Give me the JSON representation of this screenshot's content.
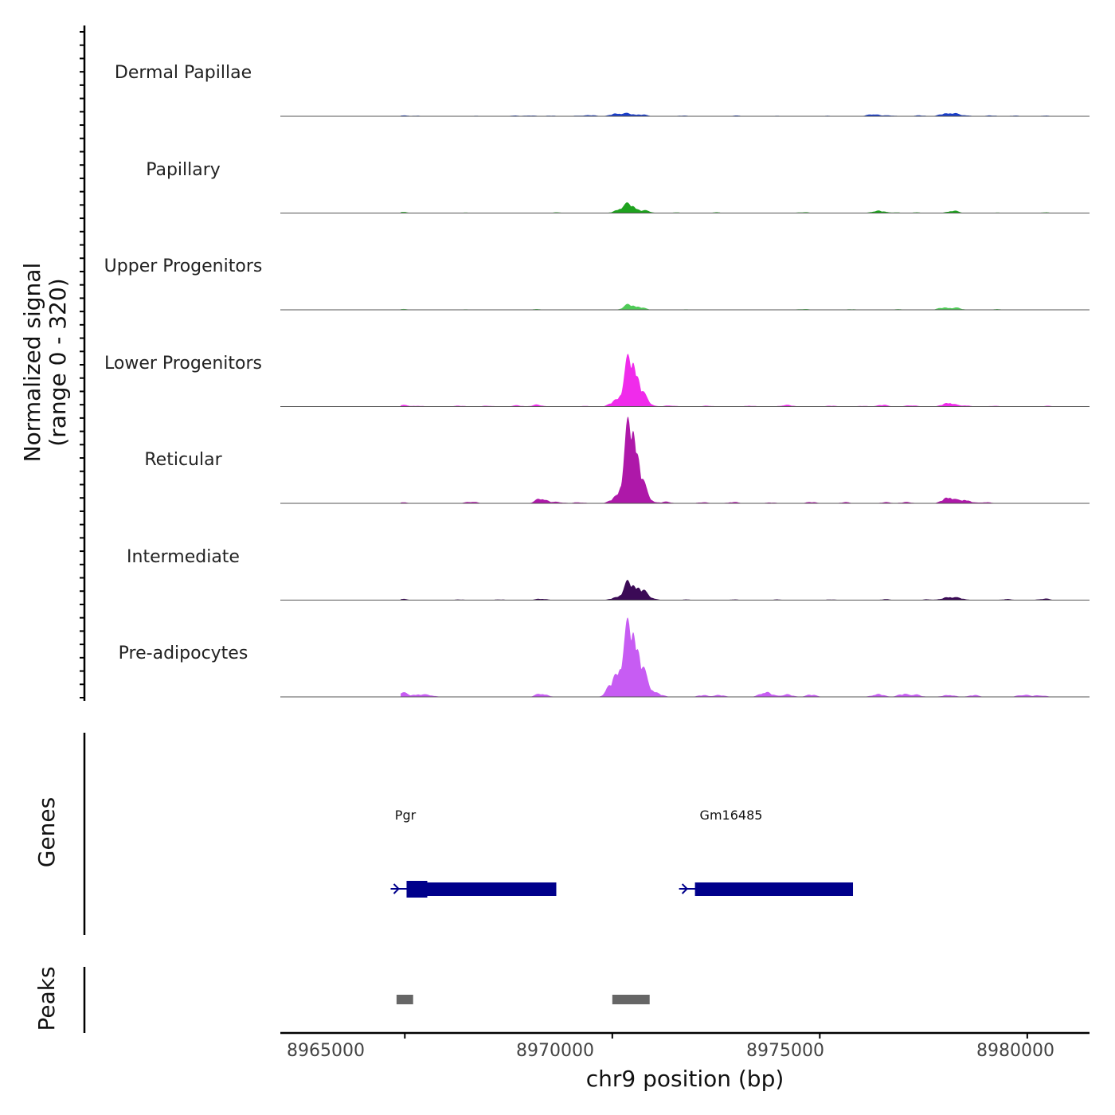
{
  "chart_data": {
    "type": "area",
    "title": "",
    "region": "chr9",
    "xlabel": "chr9 position (bp)",
    "ylabel_line1": "Normalized signal",
    "ylabel_line2": "(range 0 - 320)",
    "ylim": [
      0,
      320
    ],
    "xlim": [
      8962000,
      8981500
    ],
    "xticks": [
      8965000,
      8970000,
      8975000,
      8980000
    ],
    "xtick_labels": [
      "8965000",
      "8970000",
      "8975000",
      "8980000"
    ],
    "tracks": [
      {
        "name": "Dermal Papillae",
        "color": "#1A3EC8",
        "peaks": [
          [
            8964900,
            4
          ],
          [
            8965300,
            3
          ],
          [
            8966700,
            2
          ],
          [
            8967600,
            3
          ],
          [
            8968000,
            4
          ],
          [
            8968500,
            3
          ],
          [
            8969200,
            3
          ],
          [
            8969500,
            5
          ],
          [
            8970100,
            14
          ],
          [
            8970400,
            11
          ],
          [
            8970700,
            8
          ],
          [
            8971700,
            3
          ],
          [
            8972300,
            2
          ],
          [
            8973000,
            3
          ],
          [
            8974000,
            2
          ],
          [
            8975200,
            2
          ],
          [
            8976300,
            11
          ],
          [
            8976700,
            4
          ],
          [
            8977400,
            4
          ],
          [
            8978000,
            10
          ],
          [
            8978200,
            12
          ],
          [
            8978500,
            5
          ],
          [
            8979100,
            4
          ],
          [
            8979700,
            3
          ],
          [
            8980400,
            3
          ]
        ]
      },
      {
        "name": "Papillary",
        "color": "#1FA21F",
        "peaks": [
          [
            8964900,
            5
          ],
          [
            8966500,
            2
          ],
          [
            8967800,
            2
          ],
          [
            8968700,
            3
          ],
          [
            8970200,
            20
          ],
          [
            8970450,
            38
          ],
          [
            8970800,
            10
          ],
          [
            8971500,
            3
          ],
          [
            8972500,
            3
          ],
          [
            8973700,
            2
          ],
          [
            8974600,
            4
          ],
          [
            8976400,
            12
          ],
          [
            8976800,
            3
          ],
          [
            8977300,
            3
          ],
          [
            8978200,
            11
          ],
          [
            8979300,
            2
          ],
          [
            8980400,
            3
          ]
        ]
      },
      {
        "name": "Upper Progenitors",
        "color": "#4FCB57",
        "peaks": [
          [
            8964900,
            4
          ],
          [
            8966500,
            2
          ],
          [
            8968200,
            3
          ],
          [
            8969300,
            2
          ],
          [
            8970400,
            22
          ],
          [
            8970650,
            12
          ],
          [
            8971800,
            2
          ],
          [
            8973300,
            2
          ],
          [
            8974600,
            4
          ],
          [
            8975800,
            3
          ],
          [
            8976900,
            3
          ],
          [
            8978000,
            11
          ],
          [
            8978300,
            8
          ],
          [
            8979300,
            3
          ]
        ]
      },
      {
        "name": "Lower Progenitors",
        "color": "#F02BEB",
        "peaks": [
          [
            8964900,
            8
          ],
          [
            8965300,
            4
          ],
          [
            8966300,
            4
          ],
          [
            8967000,
            4
          ],
          [
            8967700,
            5
          ],
          [
            8968200,
            8
          ],
          [
            8969300,
            3
          ],
          [
            8970100,
            30
          ],
          [
            8970400,
            150
          ],
          [
            8970550,
            130
          ],
          [
            8970800,
            25
          ],
          [
            8971400,
            5
          ],
          [
            8972300,
            4
          ],
          [
            8973300,
            4
          ],
          [
            8974200,
            8
          ],
          [
            8975300,
            4
          ],
          [
            8976000,
            3
          ],
          [
            8976500,
            8
          ],
          [
            8977200,
            6
          ],
          [
            8978100,
            20
          ],
          [
            8978500,
            6
          ],
          [
            8979200,
            3
          ],
          [
            8980500,
            3
          ]
        ]
      },
      {
        "name": "Reticular",
        "color": "#AE18A9",
        "peaks": [
          [
            8964900,
            5
          ],
          [
            8966600,
            8
          ],
          [
            8968300,
            24
          ],
          [
            8968700,
            6
          ],
          [
            8969200,
            5
          ],
          [
            8970100,
            28
          ],
          [
            8970400,
            248
          ],
          [
            8970550,
            215
          ],
          [
            8970800,
            35
          ],
          [
            8971300,
            7
          ],
          [
            8972200,
            5
          ],
          [
            8972900,
            6
          ],
          [
            8973800,
            4
          ],
          [
            8974800,
            6
          ],
          [
            8975600,
            5
          ],
          [
            8976600,
            5
          ],
          [
            8977100,
            6
          ],
          [
            8978100,
            32
          ],
          [
            8978500,
            18
          ],
          [
            8979000,
            6
          ]
        ]
      },
      {
        "name": "Intermediate",
        "color": "#3B0A56",
        "peaks": [
          [
            8964900,
            6
          ],
          [
            8966300,
            3
          ],
          [
            8967300,
            3
          ],
          [
            8968300,
            7
          ],
          [
            8970100,
            12
          ],
          [
            8970400,
            72
          ],
          [
            8970650,
            50
          ],
          [
            8970900,
            12
          ],
          [
            8971800,
            3
          ],
          [
            8972900,
            3
          ],
          [
            8974000,
            3
          ],
          [
            8975300,
            3
          ],
          [
            8976600,
            4
          ],
          [
            8977600,
            4
          ],
          [
            8978100,
            16
          ],
          [
            8978400,
            8
          ],
          [
            8979500,
            5
          ],
          [
            8980400,
            7
          ]
        ]
      },
      {
        "name": "Pre-adipocytes",
        "color": "#C75CF3",
        "peaks": [
          [
            8964900,
            22
          ],
          [
            8965300,
            12
          ],
          [
            8965600,
            8
          ],
          [
            8968300,
            16
          ],
          [
            8970000,
            48
          ],
          [
            8970200,
            110
          ],
          [
            8970450,
            290
          ],
          [
            8970650,
            130
          ],
          [
            8970900,
            30
          ],
          [
            8971100,
            10
          ],
          [
            8972200,
            8
          ],
          [
            8972600,
            8
          ],
          [
            8973700,
            25
          ],
          [
            8974200,
            12
          ],
          [
            8974800,
            10
          ],
          [
            8976400,
            14
          ],
          [
            8977000,
            12
          ],
          [
            8977300,
            10
          ],
          [
            8978100,
            10
          ],
          [
            8978700,
            8
          ],
          [
            8979900,
            10
          ],
          [
            8980300,
            8
          ]
        ]
      }
    ],
    "genes": [
      {
        "name": "Pgr",
        "start": 8964850,
        "end": 8968650
      },
      {
        "name": "Gm16485",
        "start": 8971800,
        "end": 8975800
      }
    ],
    "peak_regions": [
      {
        "start": 8964800,
        "end": 8965200
      },
      {
        "start": 8970000,
        "end": 8970900
      }
    ],
    "panel_labels": [
      "Genes",
      "Peaks"
    ]
  }
}
